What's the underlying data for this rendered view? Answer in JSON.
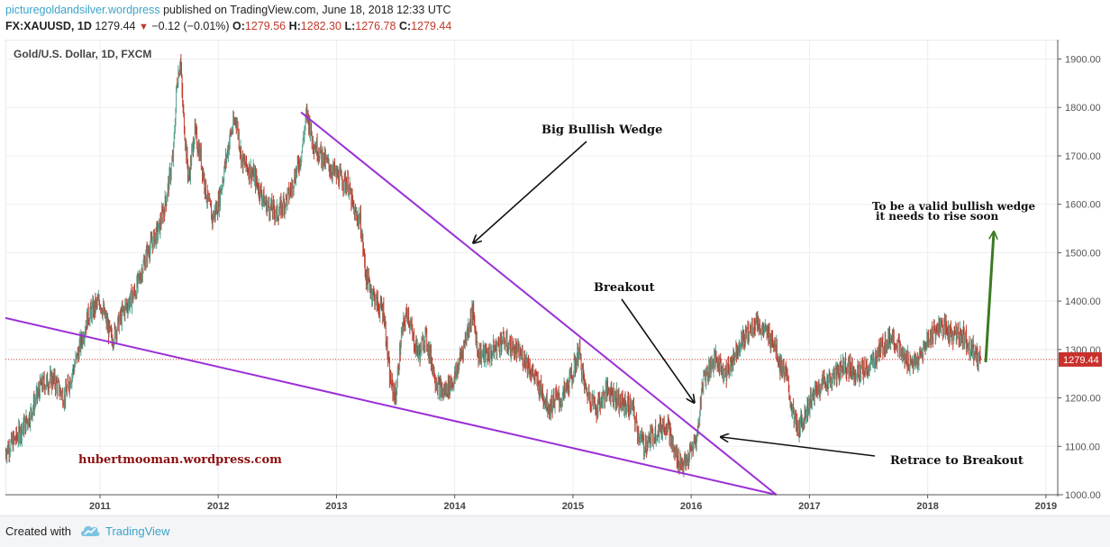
{
  "header": {
    "site": "picturegoldandsilver.wordpress",
    "published": "published on TradingView.com, June 18, 2018 12:33 UTC",
    "symbol": "FX:XAUUSD, 1D",
    "last": "1279.44",
    "change": "−0.12 (−0.01%)",
    "o_label": "O:",
    "o_value": "1279.56",
    "h_label": "H:",
    "h_value": "1282.30",
    "l_label": "L:",
    "l_value": "1276.78",
    "c_label": "C:",
    "c_value": "1279.44"
  },
  "footer": {
    "created_with": "Created with",
    "brand": "TradingView"
  },
  "chart_data": {
    "type": "line",
    "title": "Gold/U.S. Dollar, 1D, FXCM",
    "xlabel": "",
    "ylabel": "",
    "x_range": [
      2010.2,
      2019.1
    ],
    "ylim": [
      1000,
      1940
    ],
    "x_ticks": [
      "2011",
      "2012",
      "2013",
      "2014",
      "2015",
      "2016",
      "2017",
      "2018",
      "2019"
    ],
    "y_ticks": [
      "1000.00",
      "1100.00",
      "1200.00",
      "1300.00",
      "1400.00",
      "1500.00",
      "1600.00",
      "1700.00",
      "1800.00",
      "1900.00"
    ],
    "last_price_label": "1279.44",
    "last_price": 1279.44,
    "grid": true,
    "series": [
      {
        "x": [
          2010.2,
          2010.3,
          2010.4,
          2010.5,
          2010.6,
          2010.7,
          2010.8,
          2010.9,
          2011.0,
          2011.05,
          2011.1,
          2011.2,
          2011.3,
          2011.4,
          2011.5,
          2011.55,
          2011.62,
          2011.65,
          2011.68,
          2011.7,
          2011.75,
          2011.8,
          2011.85,
          2011.9,
          2011.95,
          2012.0,
          2012.1,
          2012.15,
          2012.2,
          2012.3,
          2012.4,
          2012.5,
          2012.6,
          2012.7,
          2012.75,
          2012.8,
          2012.9,
          2013.0,
          2013.1,
          2013.15,
          2013.2,
          2013.25,
          2013.3,
          2013.35,
          2013.4,
          2013.45,
          2013.5,
          2013.55,
          2013.6,
          2013.65,
          2013.7,
          2013.75,
          2013.8,
          2013.85,
          2013.9,
          2014.0,
          2014.1,
          2014.15,
          2014.2,
          2014.3,
          2014.4,
          2014.5,
          2014.6,
          2014.7,
          2014.8,
          2014.85,
          2014.9,
          2015.0,
          2015.05,
          2015.1,
          2015.2,
          2015.3,
          2015.4,
          2015.5,
          2015.55,
          2015.6,
          2015.7,
          2015.8,
          2015.85,
          2015.9,
          2015.95,
          2016.0,
          2016.05,
          2016.1,
          2016.15,
          2016.2,
          2016.3,
          2016.4,
          2016.5,
          2016.55,
          2016.6,
          2016.7,
          2016.75,
          2016.8,
          2016.85,
          2016.9,
          2016.95,
          2017.0,
          2017.1,
          2017.2,
          2017.3,
          2017.4,
          2017.5,
          2017.6,
          2017.7,
          2017.8,
          2017.9,
          2017.95,
          2018.0,
          2018.1,
          2018.2,
          2018.3,
          2018.35,
          2018.4,
          2018.45
        ],
        "y": [
          1090,
          1120,
          1160,
          1225,
          1240,
          1200,
          1280,
          1370,
          1400,
          1360,
          1320,
          1380,
          1420,
          1500,
          1550,
          1600,
          1700,
          1850,
          1900,
          1800,
          1650,
          1750,
          1700,
          1620,
          1570,
          1600,
          1740,
          1780,
          1690,
          1660,
          1600,
          1580,
          1620,
          1700,
          1790,
          1730,
          1690,
          1660,
          1640,
          1580,
          1570,
          1450,
          1420,
          1390,
          1380,
          1240,
          1200,
          1330,
          1380,
          1320,
          1290,
          1330,
          1280,
          1230,
          1210,
          1240,
          1330,
          1380,
          1290,
          1290,
          1320,
          1300,
          1280,
          1230,
          1180,
          1200,
          1195,
          1250,
          1300,
          1220,
          1180,
          1220,
          1190,
          1180,
          1130,
          1100,
          1130,
          1150,
          1090,
          1070,
          1060,
          1090,
          1120,
          1240,
          1260,
          1280,
          1250,
          1310,
          1340,
          1360,
          1340,
          1320,
          1270,
          1250,
          1180,
          1130,
          1160,
          1190,
          1230,
          1240,
          1270,
          1250,
          1260,
          1300,
          1330,
          1280,
          1270,
          1290,
          1320,
          1350,
          1330,
          1330,
          1310,
          1290,
          1279.44
        ]
      }
    ],
    "annotations": [
      {
        "text": "Big Bullish Wedge"
      },
      {
        "text": "Breakout"
      },
      {
        "text": "To be a valid bullish wedge"
      },
      {
        "text": "it needs to rise soon"
      },
      {
        "text": "Retrace to Breakout"
      },
      {
        "text": "hubertmooman.wordpress.com"
      }
    ],
    "trendlines": [
      {
        "name": "upper-wedge-line",
        "x1": 2012.7,
        "y1": 1790,
        "x2": 2016.72,
        "y2": 1000
      },
      {
        "name": "lower-wedge-line",
        "x1": 2010.2,
        "y1": 1365,
        "x2": 2016.72,
        "y2": 1000
      }
    ],
    "colors": {
      "wedge": "#9b2fd6",
      "arrow": "#111111",
      "green_arrow": "#3a7a22",
      "price_line": "#c8302c",
      "candle_up": "#53a08a",
      "candle_down": "#c0392b",
      "annotation_red": "#8b1010"
    }
  }
}
